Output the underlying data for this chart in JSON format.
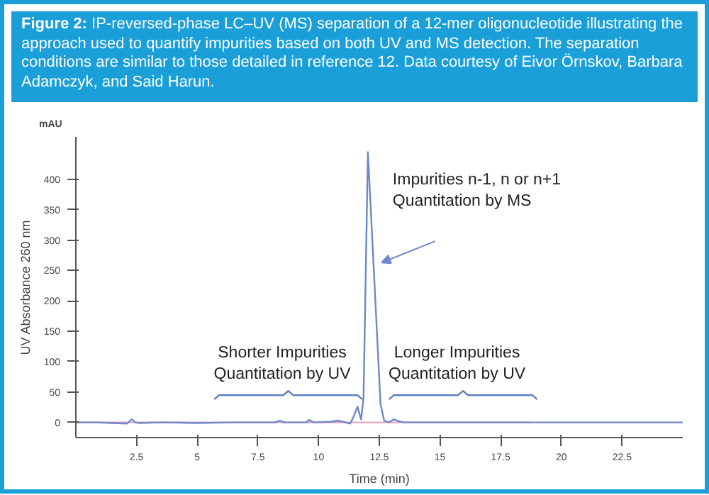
{
  "chart_data": {
    "type": "line",
    "title": "Figure 2: IP-reversed-phase LC–UV (MS) separation of a 12-mer oligonucleotide illustrating the approach used to quantify impurities based on both UV and MS detection. The separation conditions are similar to those detailed in reference 12. Data courtesy of Eivor Örnskov, Barbara Adamczyk, and Said Harun.",
    "xlabel": "Time (min)",
    "ylabel": "UV Absorbance 260 nm",
    "annotations": [
      "mAU",
      "Impurities n-1, n or n+1\nQuantitation by MS",
      "Shorter Impurities\nQuantitation by UV",
      "Longer Impurities\nQuantitation by UV"
    ],
    "xlim": [
      0,
      25
    ],
    "ylim": [
      -25,
      470
    ],
    "xticks": [
      2.5,
      5,
      7.5,
      10,
      12.5,
      15,
      17.5,
      20,
      22.5
    ],
    "yticks": [
      0,
      50,
      100,
      150,
      200,
      250,
      300,
      350,
      400
    ],
    "grid": false,
    "marker": "none",
    "line_style": "solid",
    "series": [
      {
        "color": "#e8a3c4",
        "x": [
          0,
          18.7
        ],
        "values": [
          0,
          0
        ]
      },
      {
        "color": "#6f87c8",
        "x": [
          0,
          0.8,
          1.5,
          2.1,
          2.3,
          2.45,
          2.6,
          3.5,
          5,
          6.5,
          8.2,
          8.4,
          8.6,
          9.5,
          9.6,
          9.8,
          10.5,
          10.8,
          11.1,
          11.3,
          11.45,
          11.6,
          11.75,
          11.85,
          12.03,
          12.3,
          12.55,
          12.7,
          12.9,
          13.1,
          13.3,
          13.5,
          15,
          17,
          18.7,
          20,
          22.5,
          25
        ],
        "values": [
          0,
          0,
          -1,
          -2,
          5,
          0,
          -1,
          0,
          -1,
          0,
          0,
          3,
          0,
          0,
          4,
          0,
          1,
          3,
          0,
          -2,
          10,
          26,
          5,
          40,
          445,
          230,
          30,
          3,
          0,
          5,
          2,
          0,
          0,
          0,
          0,
          0,
          0,
          0
        ]
      }
    ]
  }
}
